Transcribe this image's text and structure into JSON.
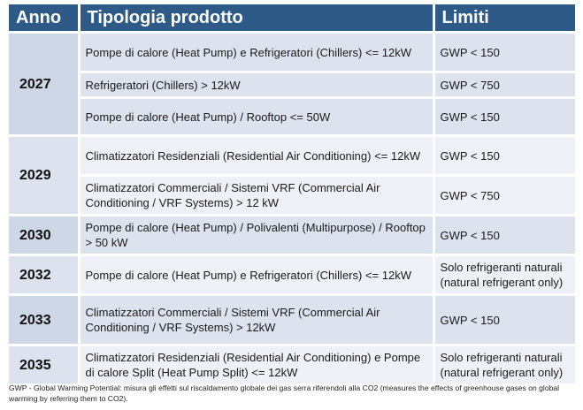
{
  "header": {
    "year": "Anno",
    "product": "Tipologia prodotto",
    "limit": "Limiti"
  },
  "groups": [
    {
      "year": "2027",
      "rows": [
        {
          "product": "Pompe di calore (Heat Pump) e Refrigeratori (Chillers) <= 12kW",
          "limit": "GWP < 150"
        },
        {
          "product": "Refrigeratori (Chillers) > 12kW",
          "limit": "GWP < 750"
        },
        {
          "product": "Pompe di calore (Heat Pump) / Rooftop <= 50W",
          "limit": "GWP < 150"
        }
      ]
    },
    {
      "year": "2029",
      "rows": [
        {
          "product": "Climatizzatori Residenziali (Residential Air Conditioning) <= 12kW",
          "limit": "GWP < 150"
        },
        {
          "product": "Climatizzatori Commerciali / Sistemi VRF (Commercial Air Conditioning / VRF Systems) > 12 kW",
          "limit": "GWP < 750"
        }
      ]
    },
    {
      "year": "2030",
      "rows": [
        {
          "product": "Pompe di calore (Heat Pump) / Polivalenti (Multipurpose) / Rooftop > 50 kW",
          "limit": "GWP < 150"
        }
      ]
    },
    {
      "year": "2032",
      "rows": [
        {
          "product": "Pompe di calore (Heat Pump) e Refrigeratori (Chillers) <= 12kW",
          "limit": "Solo refrigeranti naturali (natural refrigerant only)"
        }
      ]
    },
    {
      "year": "2033",
      "rows": [
        {
          "product": "Climatizzatori Commerciali / Sistemi VRF (Commercial Air Conditioning / VRF Systems) > 12kW",
          "limit": "GWP < 150"
        }
      ]
    },
    {
      "year": "2035",
      "rows": [
        {
          "product": "Climatizzatori Residenziali (Residential Air Conditioning) e Pompe di calore Split (Heat Pump Split) <= 12kW",
          "limit": "Solo refrigeranti naturali (natural refrigerant only)"
        }
      ]
    }
  ],
  "footnote": "GWP - Global Warming Potential: misura gli effetti sul riscaldamento globale dei gas serra riferendoli alla CO2 (measures the effects of greenhouse gases on global warming by referring them to CO2).",
  "colors": {
    "header_bg": "#2d5a86",
    "row_dark": "#dde3ee",
    "row_light": "#eef1f7"
  }
}
